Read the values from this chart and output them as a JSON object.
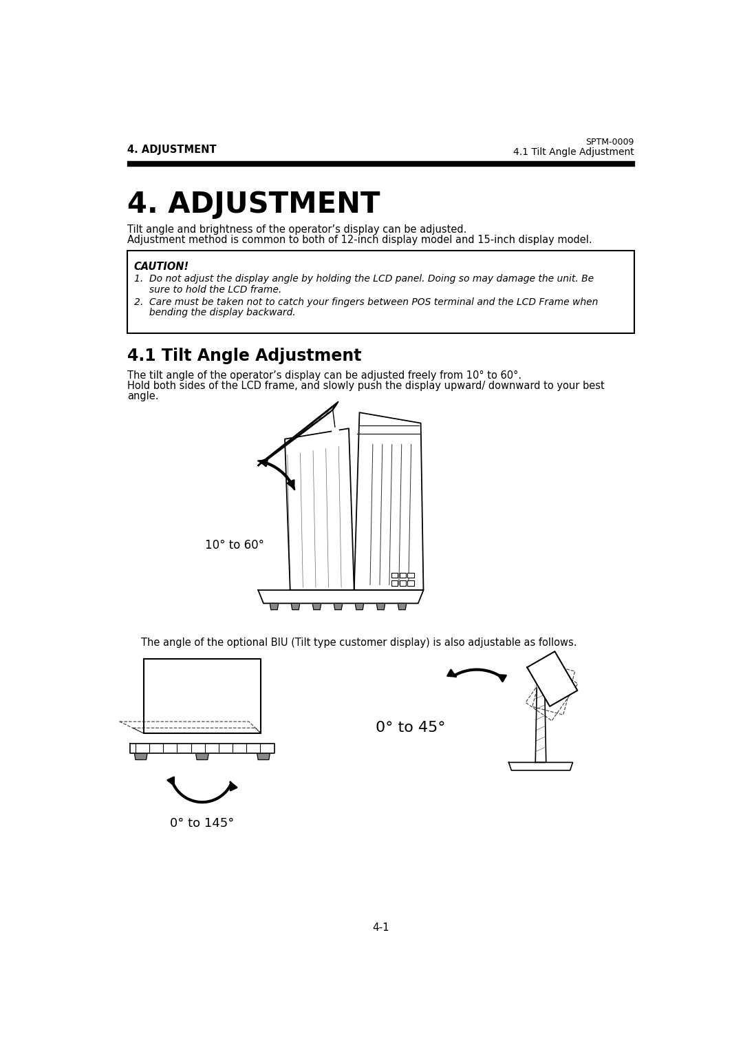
{
  "page_title_small": "4. ADJUSTMENT",
  "page_code": "SPTM-0009",
  "page_subtitle": "4.1 Tilt Angle Adjustment",
  "main_title": "4. ADJUSTMENT",
  "intro_text_line1": "Tilt angle and brightness of the operator’s display can be adjusted.",
  "intro_text_line2": "Adjustment method is common to both of 12-inch display model and 15-inch display model.",
  "caution_title": "CAUTION!",
  "caution_item1_line1": "1.  Do not adjust the display angle by holding the LCD panel. Doing so may damage the unit. Be",
  "caution_item1_line2": "     sure to hold the LCD frame.",
  "caution_item2_line1": "2.  Care must be taken not to catch your fingers between POS terminal and the LCD Frame when",
  "caution_item2_line2": "     bending the display backward.",
  "section_title": "4.1 Tilt Angle Adjustment",
  "section_text_line1": "The tilt angle of the operator’s display can be adjusted freely from 10° to 60°.",
  "section_text_line2": "Hold both sides of the LCD frame, and slowly push the display upward/ downward to your best",
  "section_text_line3": "angle.",
  "angle_label_1": "10° to 60°",
  "biu_text": "The angle of the optional BIU (Tilt type customer display) is also adjustable as follows.",
  "angle_label_2": "0° to 145°",
  "angle_label_3": "0° to 45°",
  "page_number": "4-1",
  "bg_color": "#ffffff",
  "text_color": "#000000"
}
